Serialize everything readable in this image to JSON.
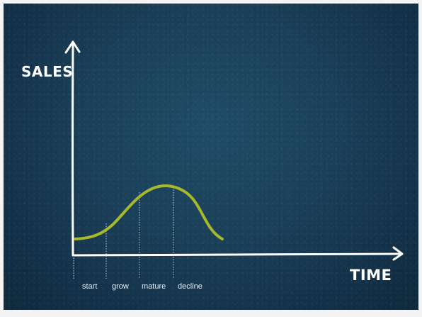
{
  "axes": {
    "y_label": "SALES",
    "x_label": "TIME"
  },
  "phases": [
    {
      "label": "start"
    },
    {
      "label": "grow"
    },
    {
      "label": "mature"
    },
    {
      "label": "decline"
    }
  ],
  "colors": {
    "background": "#1a3f58",
    "curve": "#a7b82a",
    "axis": "#ffffff",
    "divider": "#c9d3da"
  }
}
